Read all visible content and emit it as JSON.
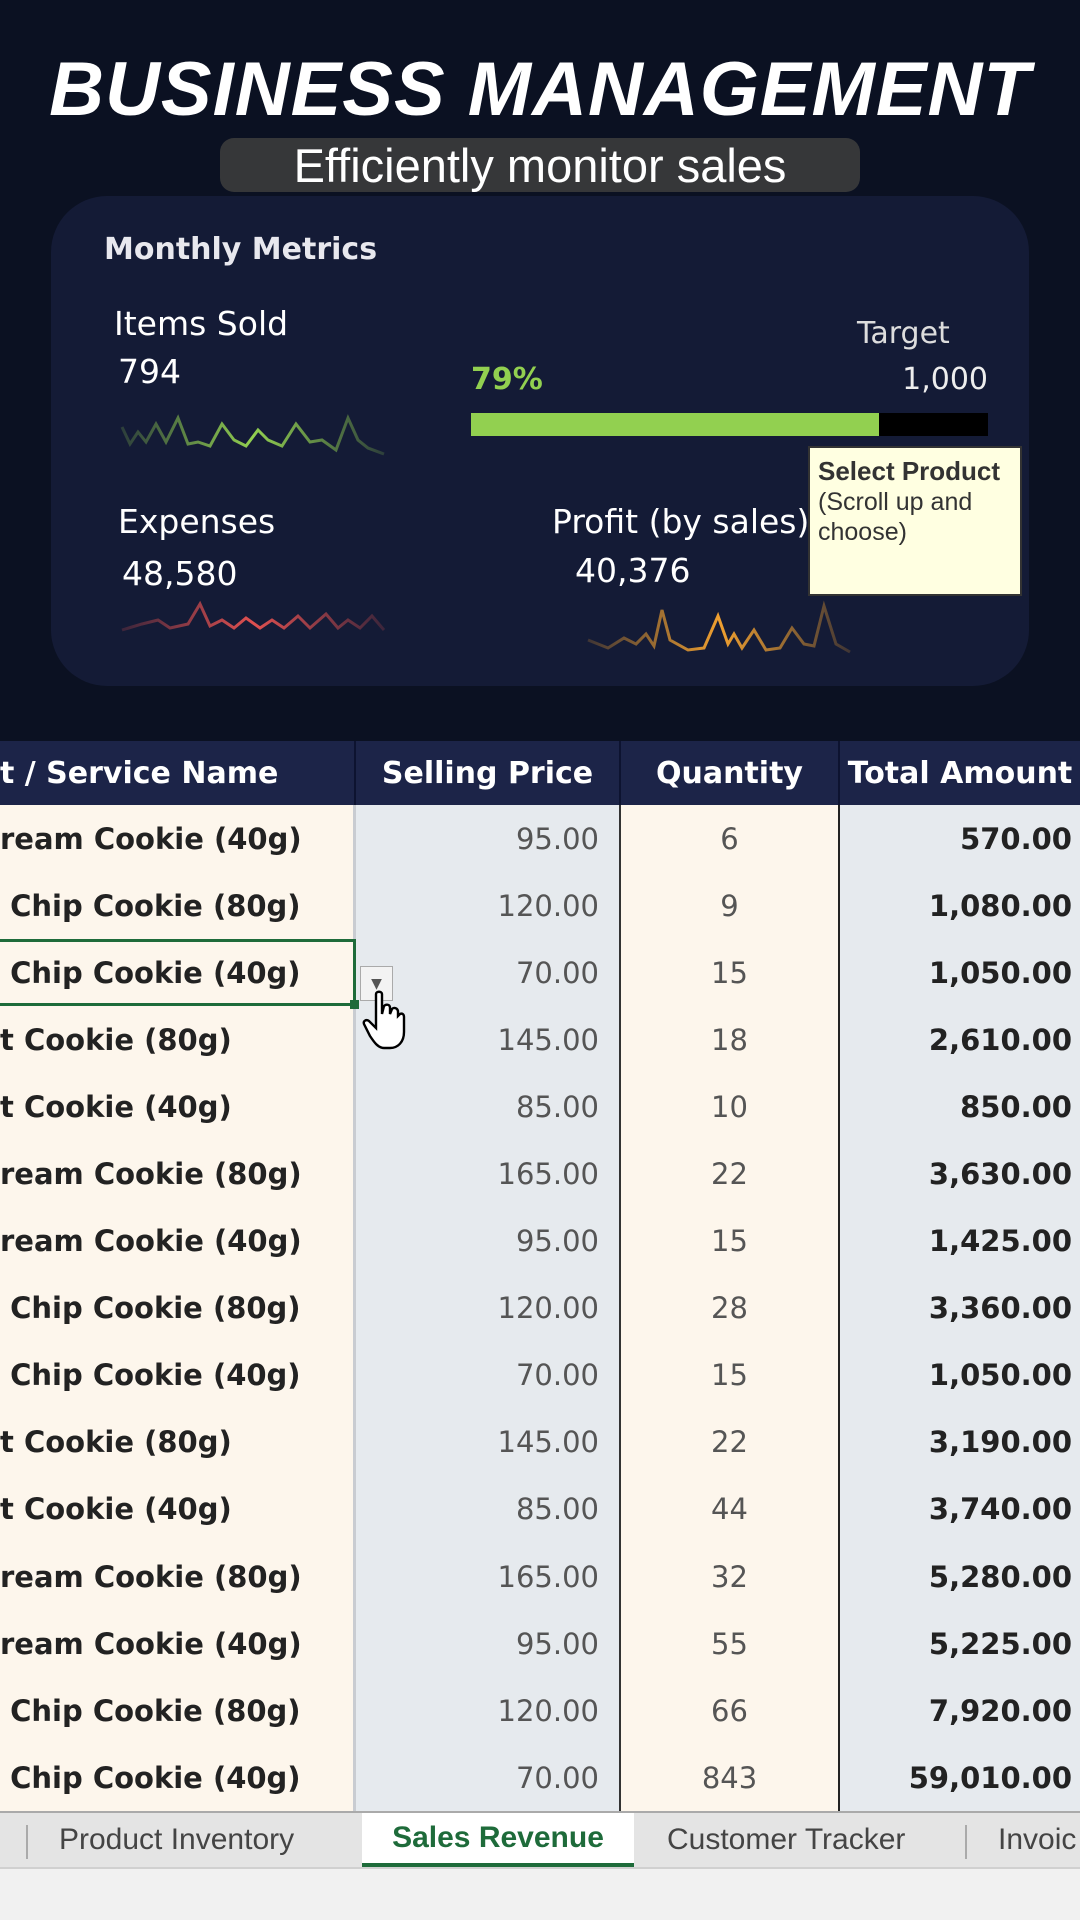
{
  "title": "BUSINESS MANAGEMENT",
  "metrics": {
    "heading": "Monthly Metrics",
    "items_sold": {
      "label": "Items Sold",
      "value": "794",
      "color": "#92d050"
    },
    "progress": {
      "percent_label": "79%",
      "percent": 79,
      "target_label": "Target",
      "target_value": "1,000",
      "color": "#92d050"
    },
    "expenses": {
      "label": "Expenses",
      "value": "48,580",
      "color": "#e05050"
    },
    "profit": {
      "label": "Profit (by sales)",
      "value": "40,376",
      "color": "#f0a030"
    }
  },
  "table": {
    "headers": [
      "t / Service Name",
      "Selling Price",
      "Quantity",
      "Total Amount"
    ],
    "rows": [
      [
        "ream Cookie (40g)",
        "95.00",
        "6",
        "570.00"
      ],
      [
        " Chip Cookie (80g)",
        "120.00",
        "9",
        "1,080.00"
      ],
      [
        " Chip Cookie (40g)",
        "70.00",
        "15",
        "1,050.00"
      ],
      [
        "t Cookie (80g)",
        "145.00",
        "18",
        "2,610.00"
      ],
      [
        "t Cookie (40g)",
        "85.00",
        "10",
        "850.00"
      ],
      [
        "ream Cookie (80g)",
        "165.00",
        "22",
        "3,630.00"
      ],
      [
        "ream Cookie (40g)",
        "95.00",
        "15",
        "1,425.00"
      ],
      [
        " Chip Cookie (80g)",
        "120.00",
        "28",
        "3,360.00"
      ],
      [
        " Chip Cookie (40g)",
        "70.00",
        "15",
        "1,050.00"
      ],
      [
        "t Cookie (80g)",
        "145.00",
        "22",
        "3,190.00"
      ],
      [
        "t Cookie (40g)",
        "85.00",
        "44",
        "3,740.00"
      ],
      [
        "ream Cookie (80g)",
        "165.00",
        "32",
        "5,280.00"
      ],
      [
        "ream Cookie (40g)",
        "95.00",
        "55",
        "5,225.00"
      ],
      [
        " Chip Cookie (80g)",
        "120.00",
        "66",
        "7,920.00"
      ],
      [
        " Chip Cookie (40g)",
        "70.00",
        "843",
        "59,010.00"
      ]
    ]
  },
  "tooltip": {
    "title": "Select Product",
    "body": "(Scroll up and choose)"
  },
  "caption": "Efficiently monitor sales",
  "sheet_tabs": [
    "Product Inventory",
    "Sales Revenue",
    "Customer Tracker",
    "Invoic"
  ],
  "active_tab": "Sales Revenue"
}
